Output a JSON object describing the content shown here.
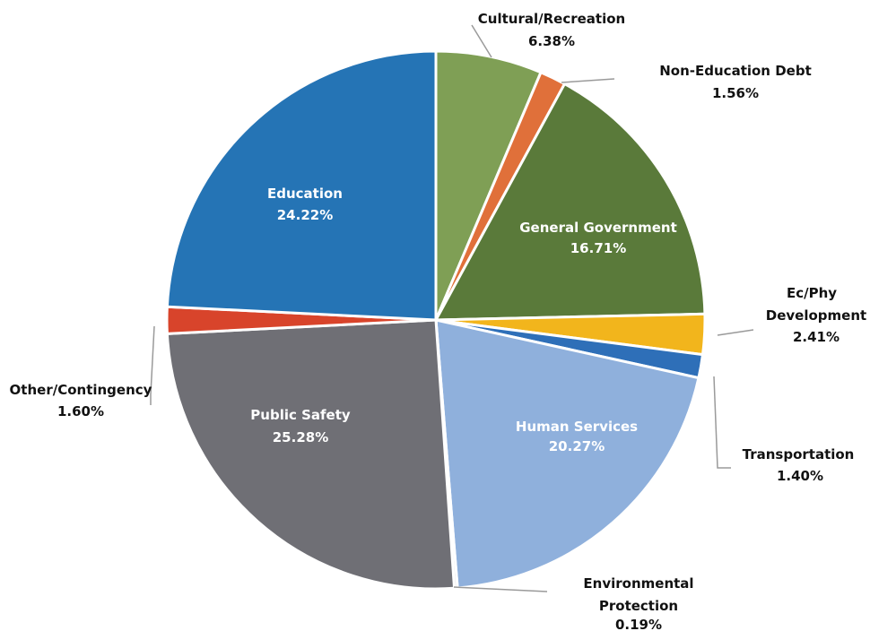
{
  "chart_data": {
    "type": "pie",
    "title": "",
    "start_angle_deg": 0,
    "direction": "clockwise",
    "slices": [
      {
        "label": "Cultural/Recreation",
        "value_label": "6.38%",
        "value": 6.38,
        "color": "#7f9f55"
      },
      {
        "label": "Non-Education Debt",
        "value_label": "1.56%",
        "value": 1.56,
        "color": "#e0703a"
      },
      {
        "label": "General Government",
        "value_label": "16.71%",
        "value": 16.71,
        "color": "#5a7a3a"
      },
      {
        "label": "Ec/Phy Development",
        "value_label": "2.41%",
        "value": 2.41,
        "color": "#f2b51c"
      },
      {
        "label": "Transportation",
        "value_label": "1.40%",
        "value": 1.4,
        "color": "#2e6fb8"
      },
      {
        "label": "Human Services",
        "value_label": "20.27%",
        "value": 20.27,
        "color": "#8fb0dc"
      },
      {
        "label": "Environmental Protection",
        "value_label": "0.19%",
        "value": 0.19,
        "color": "#e0e0e0"
      },
      {
        "label": "Public Safety",
        "value_label": "25.28%",
        "value": 25.28,
        "color": "#6f6f75"
      },
      {
        "label": "Other/Contingency",
        "value_label": "1.60%",
        "value": 1.6,
        "color": "#d8442b"
      },
      {
        "label": "Education",
        "value_label": "24.22%",
        "value": 24.22,
        "color": "#2574b5"
      }
    ]
  }
}
